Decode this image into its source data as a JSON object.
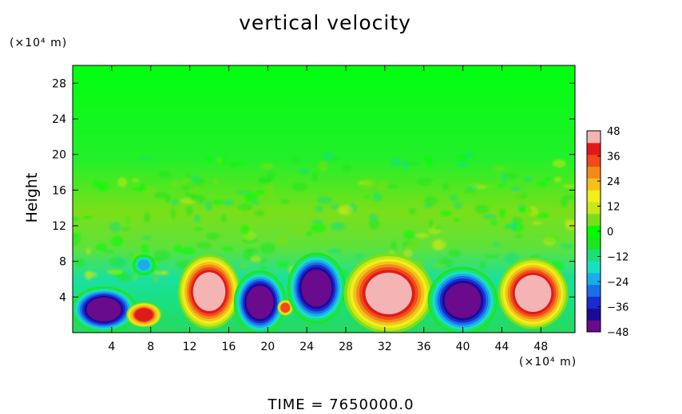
{
  "chart_data": {
    "type": "heatmap",
    "title": "vertical velocity",
    "ylabel": "Height",
    "y_unit_label": "(×10⁴ m)",
    "x_unit_label": "(×10⁴ m)",
    "footer": "TIME  =  7650000.0",
    "xlim": [
      0,
      51.5
    ],
    "ylim": [
      0,
      30
    ],
    "x_ticks": [
      4,
      8,
      12,
      16,
      20,
      24,
      28,
      32,
      36,
      40,
      44,
      48
    ],
    "y_ticks": [
      4,
      8,
      12,
      16,
      20,
      24,
      28
    ],
    "colorbar": {
      "ticks": [
        48,
        36,
        24,
        12,
        0,
        -12,
        -24,
        -36,
        -48
      ],
      "range": [
        -48,
        48
      ],
      "colors": [
        "#6a0a8c",
        "#1a0a9a",
        "#1a2ccf",
        "#1a6ee8",
        "#1aaee8",
        "#1ae0c0",
        "#1ae07a",
        "#1ee61e",
        "#00ff00",
        "#7adf1a",
        "#c8e61a",
        "#f2ee1a",
        "#f2c21a",
        "#f28a1a",
        "#f24a1a",
        "#e01a1a",
        "#f4b4b4"
      ]
    },
    "features": [
      {
        "x": 3.2,
        "y": 2.6,
        "value": -48,
        "rx": 3.4,
        "ry": 2.6
      },
      {
        "x": 7.3,
        "y": 2.0,
        "value": 40,
        "rx": 1.8,
        "ry": 1.4
      },
      {
        "x": 7.3,
        "y": 7.6,
        "value": -20,
        "rx": 1.2,
        "ry": 1.2
      },
      {
        "x": 14.0,
        "y": 4.6,
        "value": 48,
        "rx": 3.2,
        "ry": 4.2
      },
      {
        "x": 19.2,
        "y": 3.4,
        "value": -48,
        "rx": 2.7,
        "ry": 3.6
      },
      {
        "x": 21.8,
        "y": 2.8,
        "value": 36,
        "rx": 0.8,
        "ry": 0.9
      },
      {
        "x": 25.0,
        "y": 5.0,
        "value": -44,
        "rx": 3.0,
        "ry": 4.0
      },
      {
        "x": 32.4,
        "y": 4.4,
        "value": 48,
        "rx": 4.6,
        "ry": 4.5
      },
      {
        "x": 40.0,
        "y": 3.6,
        "value": -48,
        "rx": 3.6,
        "ry": 3.8
      },
      {
        "x": 47.2,
        "y": 4.4,
        "value": 48,
        "rx": 3.6,
        "ry": 4.0
      }
    ]
  }
}
